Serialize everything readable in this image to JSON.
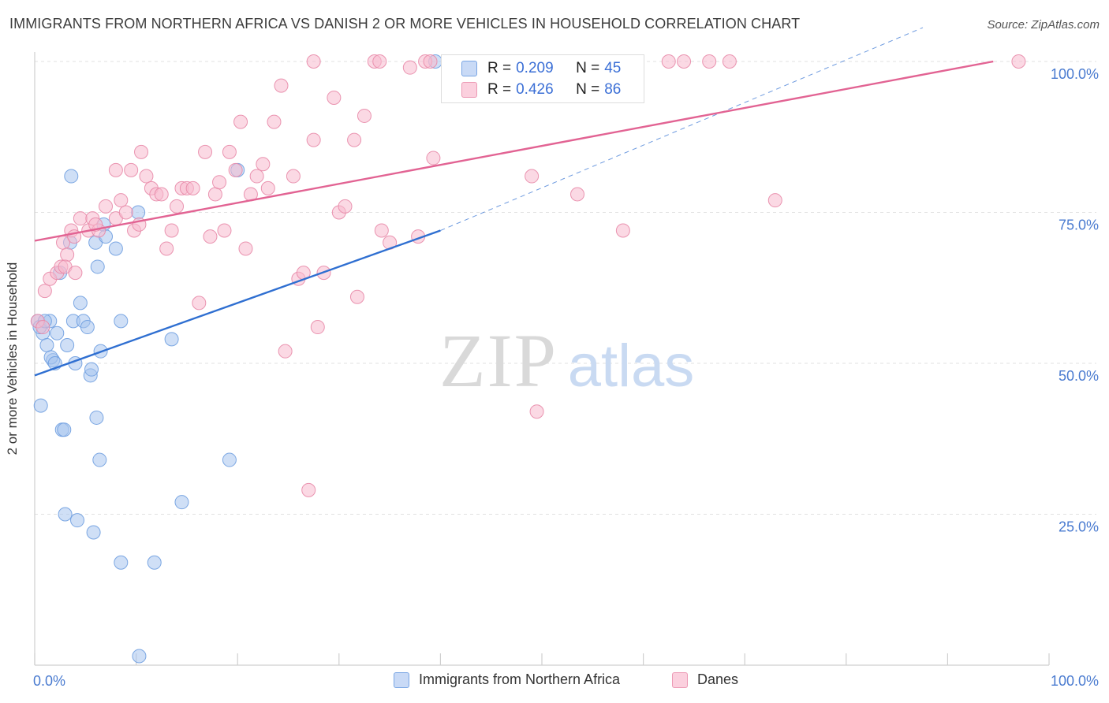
{
  "title": "IMMIGRANTS FROM NORTHERN AFRICA VS DANISH 2 OR MORE VEHICLES IN HOUSEHOLD CORRELATION CHART",
  "source": "Source: ZipAtlas.com",
  "watermark": {
    "zip": "ZIP",
    "atlas": "atlas"
  },
  "stats": [
    {
      "r_label": "R =",
      "r_value": "0.209",
      "n_label": "N =",
      "n_value": "45",
      "color": "#a8c4ee",
      "border": "#6f9ee0"
    },
    {
      "r_label": "R =",
      "r_value": "0.426",
      "n_label": "N =",
      "n_value": "86",
      "color": "#f7b9cd",
      "border": "#e88aa8"
    }
  ],
  "chart_data": {
    "type": "scatter",
    "title": "IMMIGRANTS FROM NORTHERN AFRICA VS DANISH 2 OR MORE VEHICLES IN HOUSEHOLD CORRELATION CHART",
    "xlabel": "",
    "ylabel": "2 or more Vehicles in Household",
    "xlim": [
      0,
      100
    ],
    "ylim": [
      0,
      100
    ],
    "x_tick_labels": [
      "0.0%",
      "100.0%"
    ],
    "y_tick_labels": [
      "25.0%",
      "50.0%",
      "75.0%",
      "100.0%"
    ],
    "y_ticks": [
      25,
      50,
      75,
      100
    ],
    "grid": true,
    "legend_position": "bottom",
    "series": [
      {
        "name": "Immigrants from Northern Africa",
        "color": "#a8c4ee",
        "stroke": "#6f9ee0",
        "trend": {
          "x": [
            0,
            40
          ],
          "y": [
            48,
            72
          ],
          "color": "#2f6fd1",
          "extend_to": [
            100,
            106
          ],
          "dashed_extension": true
        },
        "points": [
          [
            0.3,
            57
          ],
          [
            0.8,
            55
          ],
          [
            0.5,
            56
          ],
          [
            1.5,
            57
          ],
          [
            1.2,
            53
          ],
          [
            1.8,
            50.5
          ],
          [
            2.2,
            55
          ],
          [
            2.5,
            65
          ],
          [
            3.2,
            53
          ],
          [
            3.5,
            70
          ],
          [
            3.8,
            57
          ],
          [
            4.0,
            50
          ],
          [
            4.5,
            60
          ],
          [
            4.8,
            57
          ],
          [
            5.2,
            56
          ],
          [
            5.5,
            48
          ],
          [
            5.6,
            49
          ],
          [
            6.0,
            70
          ],
          [
            6.2,
            66
          ],
          [
            6.5,
            52
          ],
          [
            6.8,
            73
          ],
          [
            7.0,
            71
          ],
          [
            8.0,
            69
          ],
          [
            8.5,
            57
          ],
          [
            1.0,
            57
          ],
          [
            1.6,
            51
          ],
          [
            2.0,
            50
          ],
          [
            2.7,
            39
          ],
          [
            2.9,
            39
          ],
          [
            3.6,
            81
          ],
          [
            6.1,
            41
          ],
          [
            6.4,
            34
          ],
          [
            0.6,
            43
          ],
          [
            10.2,
            75
          ],
          [
            13.5,
            54
          ],
          [
            20.0,
            82
          ],
          [
            19.2,
            34
          ],
          [
            14.5,
            27
          ],
          [
            3.0,
            25
          ],
          [
            4.2,
            24
          ],
          [
            5.8,
            22
          ],
          [
            8.5,
            17
          ],
          [
            11.8,
            17
          ],
          [
            10.3,
            1.5
          ],
          [
            39.5,
            100
          ]
        ]
      },
      {
        "name": "Danes",
        "color": "#f7b9cd",
        "stroke": "#e88aa8",
        "trend": {
          "x": [
            0,
            94.5
          ],
          "y": [
            70.3,
            100
          ],
          "color": "#e26393"
        },
        "points": [
          [
            0.3,
            57
          ],
          [
            0.8,
            56
          ],
          [
            1.0,
            62
          ],
          [
            1.5,
            64
          ],
          [
            2.2,
            65
          ],
          [
            2.6,
            66
          ],
          [
            2.8,
            70
          ],
          [
            3.2,
            68
          ],
          [
            3.6,
            72
          ],
          [
            3.9,
            71
          ],
          [
            4.5,
            74
          ],
          [
            5.3,
            72
          ],
          [
            5.7,
            74
          ],
          [
            6.3,
            72
          ],
          [
            7.0,
            76
          ],
          [
            8.0,
            74
          ],
          [
            8.5,
            77
          ],
          [
            9.0,
            75
          ],
          [
            9.8,
            72
          ],
          [
            10.3,
            73
          ],
          [
            11.0,
            81
          ],
          [
            11.5,
            79
          ],
          [
            12.0,
            78
          ],
          [
            12.5,
            78
          ],
          [
            13.0,
            69
          ],
          [
            13.5,
            72
          ],
          [
            14.0,
            76
          ],
          [
            14.5,
            79
          ],
          [
            15.0,
            79
          ],
          [
            15.6,
            79
          ],
          [
            16.2,
            60
          ],
          [
            16.8,
            85
          ],
          [
            17.3,
            71
          ],
          [
            17.8,
            78
          ],
          [
            18.2,
            80
          ],
          [
            18.7,
            72
          ],
          [
            19.2,
            85
          ],
          [
            19.8,
            82
          ],
          [
            20.3,
            90
          ],
          [
            20.8,
            69
          ],
          [
            21.3,
            78
          ],
          [
            21.9,
            81
          ],
          [
            22.5,
            83
          ],
          [
            23.0,
            79
          ],
          [
            23.6,
            90
          ],
          [
            24.3,
            96
          ],
          [
            24.7,
            52
          ],
          [
            25.5,
            81
          ],
          [
            26.0,
            64
          ],
          [
            26.5,
            65
          ],
          [
            27.0,
            29
          ],
          [
            27.5,
            87
          ],
          [
            27.9,
            56
          ],
          [
            28.5,
            65
          ],
          [
            29.5,
            94
          ],
          [
            30.0,
            75
          ],
          [
            30.6,
            76
          ],
          [
            31.5,
            87
          ],
          [
            31.8,
            61
          ],
          [
            32.5,
            91
          ],
          [
            33.5,
            100
          ],
          [
            34.0,
            100
          ],
          [
            34.2,
            72
          ],
          [
            35.0,
            70
          ],
          [
            37.0,
            99
          ],
          [
            37.8,
            71
          ],
          [
            38.5,
            100
          ],
          [
            39.0,
            100
          ],
          [
            39.3,
            84
          ],
          [
            27.5,
            100
          ],
          [
            8.0,
            82
          ],
          [
            9.5,
            82
          ],
          [
            49.0,
            81
          ],
          [
            49.5,
            42
          ],
          [
            53.5,
            78
          ],
          [
            58.0,
            72
          ],
          [
            62.5,
            100
          ],
          [
            64.0,
            100
          ],
          [
            66.5,
            100
          ],
          [
            68.5,
            100
          ],
          [
            73.0,
            77
          ],
          [
            97.0,
            100
          ],
          [
            3.0,
            66
          ],
          [
            6.0,
            73
          ],
          [
            10.5,
            85
          ],
          [
            4.0,
            65
          ]
        ]
      }
    ]
  }
}
